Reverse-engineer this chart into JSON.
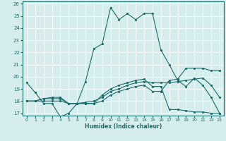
{
  "xlabel": "Humidex (Indice chaleur)",
  "xlim": [
    -0.5,
    23.5
  ],
  "ylim": [
    16.8,
    26.2
  ],
  "yticks": [
    17,
    18,
    19,
    20,
    21,
    22,
    23,
    24,
    25,
    26
  ],
  "xticks": [
    0,
    1,
    2,
    3,
    4,
    5,
    6,
    7,
    8,
    9,
    10,
    11,
    12,
    13,
    14,
    15,
    16,
    17,
    18,
    19,
    20,
    21,
    22,
    23
  ],
  "bg_color": "#d6eded",
  "grid_color": "#c0d8d8",
  "line_color": "#1a6b6b",
  "lines": [
    {
      "x": [
        0,
        1,
        2,
        3,
        4,
        5,
        6,
        7,
        8,
        9,
        10,
        11,
        12,
        13,
        14,
        15,
        16,
        17,
        18,
        19,
        20,
        21,
        22,
        23
      ],
      "y": [
        19.5,
        18.7,
        17.8,
        17.8,
        16.7,
        17.0,
        17.8,
        19.6,
        22.3,
        22.7,
        25.7,
        24.7,
        25.2,
        24.7,
        25.2,
        25.2,
        22.2,
        21.0,
        19.7,
        19.2,
        19.9,
        19.3,
        18.3,
        17.0
      ]
    },
    {
      "x": [
        0,
        1,
        2,
        3,
        4,
        5,
        6,
        7,
        8,
        9,
        10,
        11,
        12,
        13,
        14,
        15,
        16,
        17,
        18,
        19,
        20,
        21,
        22,
        23
      ],
      "y": [
        18.0,
        18.0,
        18.0,
        18.0,
        18.0,
        17.8,
        17.8,
        17.8,
        17.8,
        18.5,
        19.0,
        19.3,
        19.5,
        19.7,
        19.8,
        19.2,
        19.2,
        17.3,
        17.3,
        17.2,
        17.1,
        17.1,
        17.0,
        17.0
      ]
    },
    {
      "x": [
        0,
        1,
        2,
        3,
        4,
        5,
        6,
        7,
        8,
        9,
        10,
        11,
        12,
        13,
        14,
        15,
        16,
        17,
        18,
        19,
        20,
        21,
        22,
        23
      ],
      "y": [
        18.0,
        18.0,
        18.2,
        18.2,
        18.2,
        17.8,
        17.8,
        17.8,
        17.8,
        18.0,
        18.5,
        18.8,
        19.0,
        19.2,
        19.3,
        18.8,
        18.8,
        19.7,
        19.8,
        20.7,
        20.7,
        20.7,
        20.5,
        20.5
      ]
    },
    {
      "x": [
        0,
        1,
        2,
        3,
        4,
        5,
        6,
        7,
        8,
        9,
        10,
        11,
        12,
        13,
        14,
        15,
        16,
        17,
        18,
        19,
        20,
        21,
        22,
        23
      ],
      "y": [
        18.0,
        18.0,
        18.2,
        18.3,
        18.3,
        17.8,
        17.8,
        17.9,
        18.0,
        18.3,
        18.8,
        19.0,
        19.3,
        19.5,
        19.6,
        19.5,
        19.5,
        19.5,
        19.6,
        19.7,
        19.8,
        19.9,
        19.3,
        18.3
      ]
    }
  ]
}
